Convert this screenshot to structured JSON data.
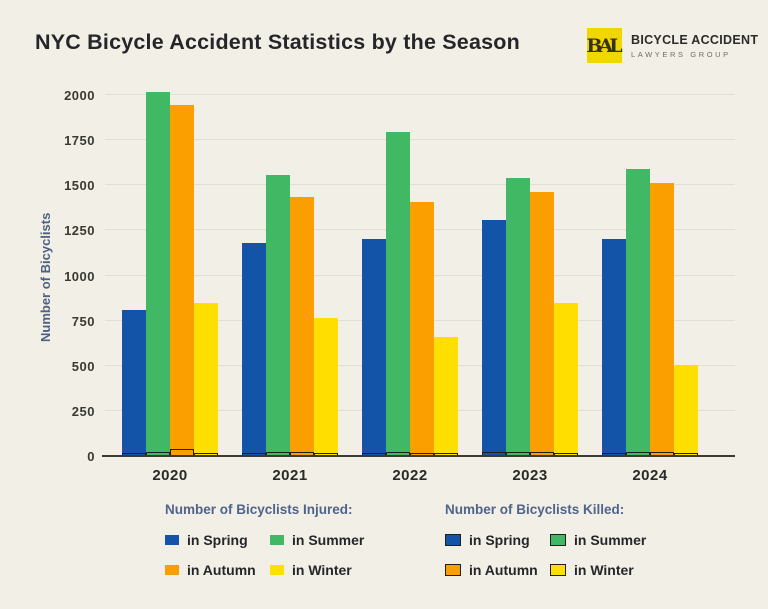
{
  "logo": {
    "monogram": "BAL",
    "name": "BICYCLE ACCIDENT",
    "subtitle": "LAWYERS GROUP",
    "badge_color": "#F2D600"
  },
  "colors": {
    "background": "#F1EFE6",
    "gridline": "#E2DFD3",
    "axis": "#3B3B33",
    "spring_blue": "#1353A8",
    "summer_green": "#41B864",
    "autumn_orange": "#FB9E00",
    "winter_yellow": "#FFDF00",
    "killed_outline": "#1F1F1C",
    "heading_slate": "#50648A"
  },
  "chart_data": {
    "type": "bar",
    "title": "NYC Bicycle Accident Statistics by the Season",
    "categories": [
      "2020",
      "2021",
      "2022",
      "2023",
      "2024"
    ],
    "xlabel": "",
    "ylabel": "Number of Bicyclists",
    "ylim": [
      0,
      2000
    ],
    "yticks": [
      0,
      250,
      500,
      750,
      1000,
      1250,
      1500,
      1750,
      2000
    ],
    "grid": true,
    "legend_position": "bottom",
    "series_groups": [
      {
        "name": "Number of Bicyclists Injured:",
        "style": "filled",
        "series": [
          {
            "name": "in Spring",
            "color": "#1353A8",
            "values": [
              810,
              1180,
              1205,
              1305,
              1200
            ]
          },
          {
            "name": "in Summer",
            "color": "#41B864",
            "values": [
              2015,
              1555,
              1795,
              1540,
              1590
            ]
          },
          {
            "name": "in Autumn",
            "color": "#FB9E00",
            "values": [
              1945,
              1435,
              1410,
              1465,
              1510
            ]
          },
          {
            "name": "in Winter",
            "color": "#FFDF00",
            "values": [
              845,
              765,
              660,
              850,
              505
            ]
          }
        ]
      },
      {
        "name": "Number of Bicyclists Killed:",
        "style": "outlined",
        "series": [
          {
            "name": "in Spring",
            "color": "#1353A8",
            "values": [
              10,
              8,
              8,
              12,
              8
            ]
          },
          {
            "name": "in Summer",
            "color": "#41B864",
            "values": [
              16,
              14,
              14,
              12,
              12
            ]
          },
          {
            "name": "in Autumn",
            "color": "#FB9E00",
            "values": [
              28,
              14,
              10,
              12,
              16
            ]
          },
          {
            "name": "in Winter",
            "color": "#FFDF00",
            "values": [
              10,
              8,
              6,
              8,
              4
            ]
          }
        ]
      }
    ]
  }
}
